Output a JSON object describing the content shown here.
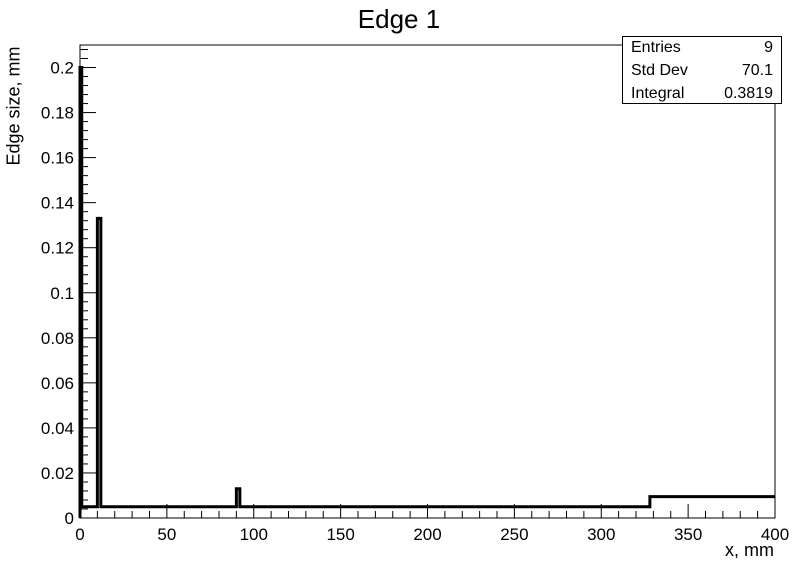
{
  "chart_data": {
    "type": "histogram",
    "title": "Edge 1",
    "xlabel": "x, mm",
    "ylabel": "Edge size, mm",
    "xlim": [
      0,
      400
    ],
    "ylim": [
      0,
      0.21
    ],
    "x_ticks": [
      "0",
      "50",
      "100",
      "150",
      "200",
      "250",
      "300",
      "350",
      "400"
    ],
    "y_ticks": [
      "0",
      "0.02",
      "0.04",
      "0.06",
      "0.08",
      "0.1",
      "0.12",
      "0.14",
      "0.16",
      "0.18",
      "0.2"
    ],
    "series": [
      {
        "bins": [
          {
            "x0": 0,
            "x1": 1,
            "y": 0.2
          },
          {
            "x0": 1,
            "x2": 10,
            "x1": 10,
            "y": 0.005
          },
          {
            "x0": 10,
            "x1": 12,
            "y": 0.133
          },
          {
            "x0": 12,
            "x1": 90,
            "y": 0.005
          },
          {
            "x0": 90,
            "x1": 92,
            "y": 0.013
          },
          {
            "x0": 92,
            "x1": 328,
            "y": 0.005
          },
          {
            "x0": 328,
            "x1": 400,
            "y": 0.0095
          }
        ]
      }
    ],
    "grid": false,
    "color": "#000000"
  },
  "stats": [
    {
      "label": "Entries",
      "value": "9"
    },
    {
      "label": "Std Dev",
      "value": "70.1"
    },
    {
      "label": "Integral",
      "value": "0.3819"
    }
  ]
}
